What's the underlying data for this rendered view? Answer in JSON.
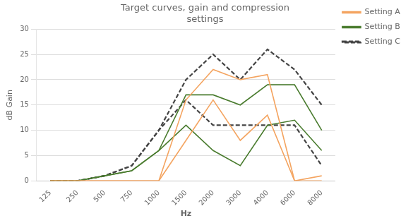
{
  "chart_data": {
    "type": "line",
    "title": "Target curves, gain and compression\nsettings",
    "x_label": "Hz",
    "y_label": "dB Gain",
    "categories": [
      "125",
      "250",
      "500",
      "750",
      "1000",
      "1500",
      "2000",
      "3000",
      "4000",
      "6000",
      "8000"
    ],
    "series": [
      {
        "name": "Setting A",
        "color": "#f4a460",
        "line_style": "solid",
        "values": [
          0,
          0,
          0,
          0,
          0,
          16,
          22,
          20,
          21,
          0,
          1
        ]
      },
      {
        "name": "Setting A",
        "color": "#f4a460",
        "line_style": "solid",
        "values": [
          0,
          0,
          0,
          0,
          0,
          8,
          16,
          8,
          13,
          0,
          0
        ]
      },
      {
        "name": "Setting B",
        "color": "#4a7c2f",
        "line_style": "solid",
        "values": [
          0,
          0,
          1,
          2,
          6,
          17,
          17,
          15,
          19,
          19,
          10
        ]
      },
      {
        "name": "Setting B",
        "color": "#4a7c2f",
        "line_style": "solid",
        "values": [
          0,
          0,
          1,
          2,
          6,
          11,
          6,
          3,
          11,
          12,
          6
        ]
      },
      {
        "name": "Setting C",
        "color": "#444444",
        "line_style": "dashed",
        "values": [
          0,
          0,
          1,
          3,
          10,
          20,
          25,
          20,
          26,
          22,
          15
        ]
      },
      {
        "name": "Setting C",
        "color": "#444444",
        "line_style": "dashed",
        "values": [
          0,
          0,
          1,
          3,
          10,
          16,
          11,
          11,
          11,
          11,
          3
        ]
      }
    ],
    "ylim": [
      0,
      30
    ],
    "yticks": [
      0,
      5,
      10,
      15,
      20,
      25,
      30
    ],
    "grid": "y",
    "legend": "right"
  }
}
